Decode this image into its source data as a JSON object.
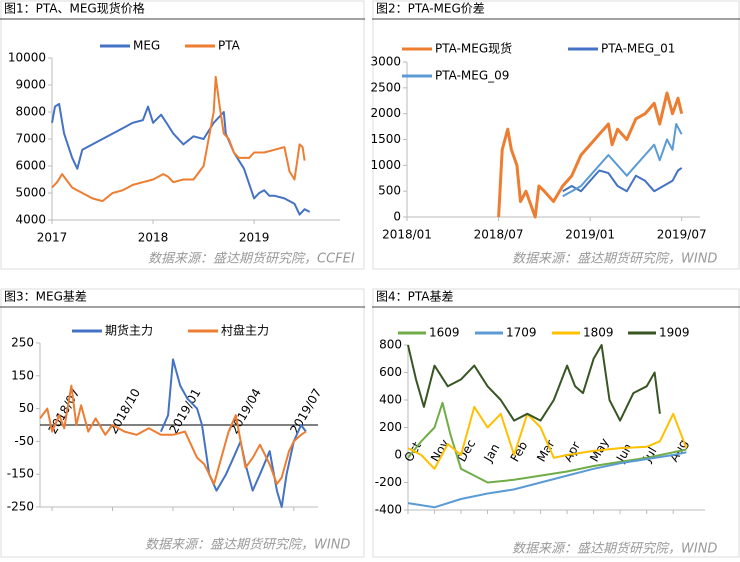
{
  "chart_data": [
    {
      "type": "line",
      "title": "图1：PTA、MEG现货价格",
      "source": "数据来源：盛达期货研究院，CCFEI",
      "xlim": [
        2017,
        2019.85
      ],
      "xticks": [
        2017,
        2018,
        2019
      ],
      "ylim": [
        4000,
        10000
      ],
      "yticks": [
        4000,
        5000,
        6000,
        7000,
        8000,
        9000,
        10000
      ],
      "series": [
        {
          "name": "MEG",
          "color": "#4472c4",
          "x": [
            2017.0,
            2017.03,
            2017.07,
            2017.12,
            2017.2,
            2017.25,
            2017.3,
            2017.4,
            2017.5,
            2017.6,
            2017.7,
            2017.8,
            2017.9,
            2017.95,
            2018.0,
            2018.08,
            2018.15,
            2018.2,
            2018.3,
            2018.4,
            2018.5,
            2018.6,
            2018.7,
            2018.72,
            2018.8,
            2018.9,
            2019.0,
            2019.05,
            2019.1,
            2019.15,
            2019.2,
            2019.3,
            2019.4,
            2019.45,
            2019.5,
            2019.55
          ],
          "values": [
            7600,
            8200,
            8300,
            7200,
            6300,
            5900,
            6600,
            6800,
            7000,
            7200,
            7400,
            7600,
            7700,
            8200,
            7600,
            7900,
            7500,
            7200,
            6800,
            7100,
            7000,
            7600,
            8000,
            7200,
            6500,
            5900,
            4800,
            5000,
            5100,
            4900,
            4900,
            4800,
            4600,
            4200,
            4400,
            4300
          ]
        },
        {
          "name": "PTA",
          "color": "#ed7d31",
          "x": [
            2017.0,
            2017.05,
            2017.1,
            2017.2,
            2017.3,
            2017.4,
            2017.5,
            2017.6,
            2017.7,
            2017.8,
            2017.9,
            2018.0,
            2018.1,
            2018.15,
            2018.2,
            2018.3,
            2018.4,
            2018.5,
            2018.55,
            2018.6,
            2018.62,
            2018.66,
            2018.7,
            2018.75,
            2018.8,
            2018.85,
            2018.9,
            2018.95,
            2019.0,
            2019.1,
            2019.2,
            2019.3,
            2019.35,
            2019.4,
            2019.45,
            2019.48,
            2019.5
          ],
          "values": [
            5200,
            5400,
            5700,
            5200,
            5000,
            4800,
            4700,
            5000,
            5100,
            5300,
            5400,
            5500,
            5700,
            5600,
            5400,
            5500,
            5500,
            6000,
            7000,
            8000,
            9300,
            8200,
            7200,
            7000,
            6500,
            6300,
            6300,
            6300,
            6500,
            6500,
            6600,
            6700,
            5800,
            5500,
            6800,
            6700,
            6200
          ]
        }
      ]
    },
    {
      "type": "line",
      "title": "图2：PTA-MEG价差",
      "source": "数据来源：盛达期货研究院，WIND",
      "xlim": [
        2018.0,
        2019.6
      ],
      "xticks": [
        {
          "value": 2018.0,
          "label": "2018/01"
        },
        {
          "value": 2018.5,
          "label": "2018/07"
        },
        {
          "value": 2019.0,
          "label": "2019/01"
        },
        {
          "value": 2019.5,
          "label": "2019/07"
        }
      ],
      "ylim": [
        0,
        3000
      ],
      "yticks": [
        0,
        500,
        1000,
        1500,
        2000,
        2500,
        3000
      ],
      "series": [
        {
          "name": "PTA-MEG现货",
          "color": "#ed7d31",
          "x": [
            2018.5,
            2018.52,
            2018.55,
            2018.57,
            2018.6,
            2018.62,
            2018.65,
            2018.68,
            2018.7,
            2018.72,
            2018.75,
            2018.8,
            2018.85,
            2018.9,
            2018.95,
            2019.0,
            2019.05,
            2019.1,
            2019.12,
            2019.15,
            2019.2,
            2019.25,
            2019.3,
            2019.35,
            2019.38,
            2019.42,
            2019.45,
            2019.48,
            2019.5
          ],
          "values": [
            0,
            1300,
            1700,
            1300,
            1000,
            300,
            500,
            200,
            0,
            600,
            500,
            300,
            600,
            800,
            1200,
            1400,
            1600,
            1800,
            1400,
            1700,
            1500,
            1900,
            2000,
            2200,
            1800,
            2400,
            2000,
            2300,
            2000
          ]
        },
        {
          "name": "PTA-MEG_01",
          "color": "#4472c4",
          "x": [
            2018.85,
            2018.9,
            2018.95,
            2019.0,
            2019.05,
            2019.1,
            2019.15,
            2019.2,
            2019.25,
            2019.3,
            2019.35,
            2019.4,
            2019.45,
            2019.48,
            2019.5
          ],
          "values": [
            500,
            600,
            500,
            700,
            900,
            850,
            600,
            500,
            800,
            700,
            500,
            600,
            700,
            900,
            950
          ]
        },
        {
          "name": "PTA-MEG_09",
          "color": "#5b9bd5",
          "x": [
            2018.85,
            2018.9,
            2018.95,
            2019.0,
            2019.05,
            2019.1,
            2019.15,
            2019.2,
            2019.25,
            2019.3,
            2019.35,
            2019.38,
            2019.42,
            2019.45,
            2019.47,
            2019.5
          ],
          "values": [
            400,
            500,
            600,
            800,
            1000,
            1200,
            1000,
            800,
            1000,
            1200,
            1400,
            1100,
            1500,
            1300,
            1800,
            1600
          ]
        }
      ]
    },
    {
      "type": "line",
      "title": "图3：MEG基差",
      "source": "数据来源：盛达期货研究院，WIND",
      "zero_line": true,
      "xlim": [
        2018.45,
        2019.6
      ],
      "xticks": [
        {
          "value": 2018.5,
          "label": "2018/07"
        },
        {
          "value": 2018.75,
          "label": "2018/10"
        },
        {
          "value": 2019.0,
          "label": "2019/01"
        },
        {
          "value": 2019.25,
          "label": "2019/04"
        },
        {
          "value": 2019.5,
          "label": "2019/07"
        }
      ],
      "ylim": [
        -250,
        250
      ],
      "yticks": [
        -250,
        -150,
        -50,
        50,
        150,
        250
      ],
      "series": [
        {
          "name": "期货主力",
          "color": "#4472c4",
          "x": [
            2018.95,
            2018.98,
            2019.0,
            2019.03,
            2019.06,
            2019.1,
            2019.12,
            2019.15,
            2019.18,
            2019.22,
            2019.25,
            2019.28,
            2019.3,
            2019.33,
            2019.36,
            2019.4,
            2019.43,
            2019.45,
            2019.47,
            2019.5,
            2019.53,
            2019.55
          ],
          "values": [
            -20,
            30,
            200,
            120,
            80,
            50,
            0,
            -150,
            -200,
            -150,
            -100,
            -50,
            -120,
            -200,
            -150,
            -80,
            -200,
            -250,
            -150,
            -50,
            0,
            -20
          ]
        },
        {
          "name": "村盘主力",
          "color": "#ed7d31",
          "x": [
            2018.45,
            2018.48,
            2018.5,
            2018.53,
            2018.55,
            2018.58,
            2018.6,
            2018.62,
            2018.65,
            2018.68,
            2018.72,
            2018.75,
            2018.8,
            2018.85,
            2018.9,
            2018.95,
            2019.0,
            2019.05,
            2019.1,
            2019.13,
            2019.17,
            2019.2,
            2019.23,
            2019.26,
            2019.3,
            2019.33,
            2019.36,
            2019.4,
            2019.43,
            2019.45,
            2019.48,
            2019.5,
            2019.53,
            2019.55
          ],
          "values": [
            20,
            50,
            -20,
            30,
            -10,
            120,
            0,
            60,
            -20,
            20,
            -30,
            0,
            -20,
            -30,
            -10,
            -30,
            -30,
            -20,
            -100,
            -120,
            -180,
            -100,
            -20,
            30,
            -130,
            -100,
            -60,
            -120,
            -180,
            -160,
            -80,
            -50,
            -30,
            -20
          ]
        }
      ]
    },
    {
      "type": "line",
      "title": "图4：PTA基差",
      "source": "数据来源：盛达期货研究院，WIND",
      "xlim": [
        0,
        11.2
      ],
      "xticks": [
        {
          "value": 0,
          "label": "Oct"
        },
        {
          "value": 1,
          "label": "Nov"
        },
        {
          "value": 2,
          "label": "Dec"
        },
        {
          "value": 3,
          "label": "Jan"
        },
        {
          "value": 4,
          "label": "Feb"
        },
        {
          "value": 5,
          "label": "Mar"
        },
        {
          "value": 6,
          "label": "Apr"
        },
        {
          "value": 7,
          "label": "May"
        },
        {
          "value": 8,
          "label": "Jun"
        },
        {
          "value": 9,
          "label": "Jul"
        },
        {
          "value": 10,
          "label": "Aug"
        }
      ],
      "ylim": [
        -400,
        800
      ],
      "yticks": [
        -400,
        -200,
        0,
        200,
        400,
        600,
        800
      ],
      "series": [
        {
          "name": "1609",
          "color": "#70ad47",
          "x": [
            0,
            0.5,
            1,
            1.3,
            1.6,
            2,
            2.5,
            3,
            4,
            5,
            6,
            7,
            8,
            9,
            10,
            10.5
          ],
          "values": [
            -20,
            100,
            200,
            380,
            150,
            -100,
            -150,
            -200,
            -180,
            -150,
            -120,
            -80,
            -50,
            -20,
            20,
            40
          ]
        },
        {
          "name": "1709",
          "color": "#5b9bd5",
          "x": [
            0,
            1,
            2,
            3,
            4,
            5,
            6,
            7,
            8,
            9,
            10,
            10.5
          ],
          "values": [
            -350,
            -380,
            -320,
            -280,
            -250,
            -200,
            -150,
            -100,
            -60,
            -30,
            0,
            20
          ]
        },
        {
          "name": "1809",
          "color": "#ffc000",
          "x": [
            0,
            0.5,
            1,
            1.5,
            2,
            2.5,
            3,
            3.5,
            4,
            4.5,
            5,
            5.5,
            6,
            7,
            8,
            9,
            9.5,
            10,
            10.5
          ],
          "values": [
            50,
            0,
            -100,
            80,
            0,
            350,
            200,
            300,
            0,
            300,
            200,
            -20,
            0,
            30,
            50,
            60,
            100,
            300,
            50
          ]
        },
        {
          "name": "1909",
          "color": "#375623",
          "x": [
            0,
            0.3,
            0.6,
            1,
            1.5,
            2,
            2.5,
            3,
            3.5,
            4,
            4.5,
            5,
            5.5,
            6,
            6.3,
            6.6,
            7,
            7.3,
            7.6,
            8,
            8.5,
            9,
            9.3,
            9.5
          ],
          "values": [
            800,
            550,
            350,
            650,
            500,
            550,
            650,
            500,
            400,
            250,
            300,
            250,
            400,
            650,
            500,
            450,
            700,
            800,
            400,
            250,
            450,
            500,
            600,
            300
          ]
        }
      ]
    }
  ]
}
